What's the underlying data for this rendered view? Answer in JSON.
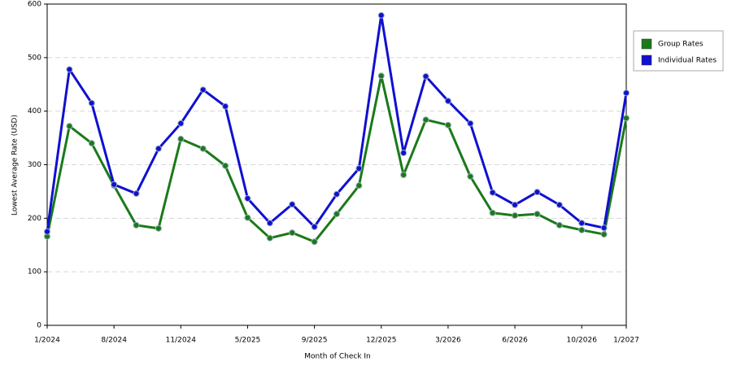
{
  "chart_data": {
    "type": "line",
    "x_label": "Month of Check In",
    "y_label": "Lowest Average Rate (USD)",
    "categories": [
      "1/2024",
      null,
      null,
      "8/2024",
      null,
      null,
      "11/2024",
      null,
      null,
      "5/2025",
      null,
      null,
      "9/2025",
      null,
      null,
      "12/2025",
      null,
      null,
      "3/2026",
      null,
      null,
      "6/2026",
      null,
      null,
      "10/2026",
      null,
      "1/2027"
    ],
    "series": [
      {
        "name": "Group Rates",
        "color": "#1a7a1a",
        "values": [
          166,
          372,
          340,
          261,
          187,
          181,
          348,
          330,
          298,
          201,
          163,
          173,
          156,
          208,
          261,
          466,
          281,
          384,
          374,
          278,
          210,
          205,
          208,
          187,
          178,
          170,
          387
        ]
      },
      {
        "name": "Individual Rates",
        "color": "#1010d0",
        "values": [
          175,
          478,
          415,
          263,
          246,
          330,
          377,
          440,
          409,
          237,
          191,
          226,
          184,
          245,
          293,
          579,
          322,
          465,
          419,
          377,
          248,
          225,
          249,
          225,
          191,
          182,
          434
        ]
      }
    ],
    "ylim": [
      0,
      600
    ],
    "yticks": [
      0,
      100,
      200,
      300,
      400,
      500,
      600
    ],
    "grid": true,
    "legend": "right"
  }
}
